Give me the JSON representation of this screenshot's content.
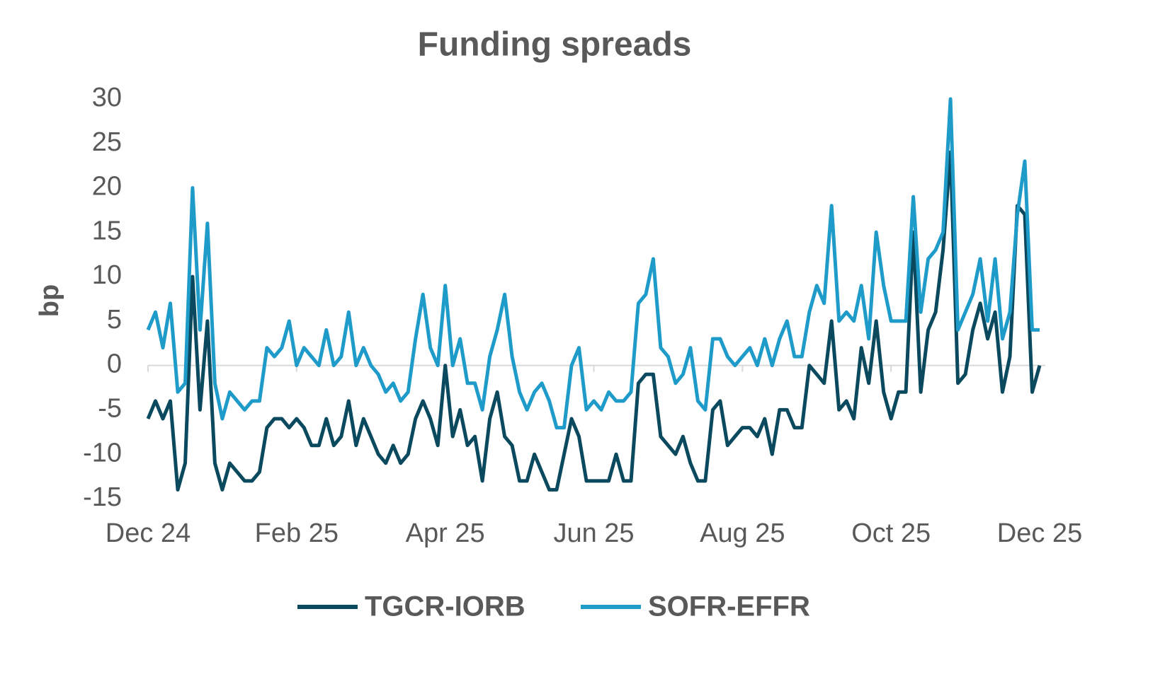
{
  "chart_data": {
    "type": "line",
    "title": "Funding spreads",
    "y_label": "bp",
    "x": [
      0,
      0.1,
      0.2,
      0.3,
      0.4,
      0.5,
      0.6,
      0.7,
      0.8,
      0.9,
      1,
      1.1,
      1.2,
      1.3,
      1.4,
      1.5,
      1.6,
      1.7,
      1.8,
      1.9,
      2,
      2.1,
      2.2,
      2.3,
      2.4,
      2.5,
      2.6,
      2.7,
      2.8,
      2.9,
      3,
      3.1,
      3.2,
      3.3,
      3.4,
      3.5,
      3.6,
      3.7,
      3.8,
      3.9,
      4,
      4.1,
      4.2,
      4.3,
      4.4,
      4.5,
      4.6,
      4.7,
      4.8,
      4.9,
      5,
      5.1,
      5.2,
      5.3,
      5.4,
      5.5,
      5.6,
      5.7,
      5.8,
      5.9,
      6,
      6.1,
      6.2,
      6.3,
      6.4,
      6.5,
      6.6,
      6.7,
      6.8,
      6.9,
      7,
      7.1,
      7.2,
      7.3,
      7.4,
      7.5,
      7.6,
      7.7,
      7.8,
      7.9,
      8,
      8.1,
      8.2,
      8.3,
      8.4,
      8.5,
      8.6,
      8.7,
      8.8,
      8.9,
      9,
      9.1,
      9.2,
      9.3,
      9.4,
      9.5,
      9.6,
      9.7,
      9.8,
      9.9,
      10,
      10.1,
      10.2,
      10.3,
      10.4,
      10.5,
      10.6,
      10.7,
      10.8,
      10.9,
      11,
      11.1,
      11.2,
      11.3,
      11.4,
      11.5,
      11.6,
      11.7,
      11.8,
      11.9,
      12
    ],
    "series": [
      {
        "name": "TGCR-IORB",
        "color": "#0b4a5e",
        "values": [
          -6,
          -4,
          -6,
          -4,
          -14,
          -11,
          10,
          -5,
          5,
          -11,
          -14,
          -11,
          -12,
          -13,
          -13,
          -12,
          -7,
          -6,
          -6,
          -7,
          -6,
          -7,
          -9,
          -9,
          -6,
          -9,
          -8,
          -4,
          -9,
          -6,
          -8,
          -10,
          -11,
          -9,
          -11,
          -10,
          -6,
          -4,
          -6,
          -9,
          0,
          -8,
          -5,
          -9,
          -8,
          -13,
          -6,
          -3,
          -8,
          -9,
          -13,
          -13,
          -10,
          -12,
          -14,
          -14,
          -10,
          -6,
          -8,
          -13,
          -13,
          -13,
          -13,
          -10,
          -13,
          -13,
          -2,
          -1,
          -1,
          -8,
          -9,
          -10,
          -8,
          -11,
          -13,
          -13,
          -5,
          -4,
          -9,
          -8,
          -7,
          -7,
          -8,
          -6,
          -10,
          -5,
          -5,
          -7,
          -7,
          0,
          -1,
          -2,
          5,
          -5,
          -4,
          -6,
          2,
          -2,
          5,
          -3,
          -6,
          -3,
          -3,
          15,
          -3,
          4,
          6,
          13,
          24,
          -2,
          -1,
          4,
          7,
          3,
          6,
          -3,
          1,
          18,
          17,
          -3,
          0
        ]
      },
      {
        "name": "SOFR-EFFR",
        "color": "#1f9bc9",
        "values": [
          4,
          6,
          2,
          7,
          -3,
          -2,
          20,
          4,
          16,
          -2,
          -6,
          -3,
          -4,
          -5,
          -4,
          -4,
          2,
          1,
          2,
          5,
          0,
          2,
          1,
          0,
          4,
          0,
          1,
          6,
          0,
          2,
          0,
          -1,
          -3,
          -2,
          -4,
          -3,
          3,
          8,
          2,
          0,
          9,
          0,
          3,
          -2,
          -2,
          -5,
          1,
          4,
          8,
          1,
          -3,
          -5,
          -3,
          -2,
          -4,
          -7,
          -7,
          0,
          2,
          -5,
          -4,
          -5,
          -3,
          -4,
          -4,
          -3,
          7,
          8,
          12,
          2,
          1,
          -2,
          -1,
          2,
          -4,
          -5,
          3,
          3,
          1,
          0,
          1,
          2,
          0,
          3,
          0,
          3,
          5,
          1,
          1,
          6,
          9,
          7,
          18,
          5,
          6,
          5,
          9,
          3,
          15,
          9,
          5,
          5,
          5,
          19,
          6,
          12,
          13,
          15,
          30,
          4,
          6,
          8,
          12,
          5,
          12,
          3,
          6,
          17,
          23,
          4,
          4
        ]
      }
    ],
    "xlim": [
      0,
      12
    ],
    "xticks": [
      {
        "value": 0,
        "label": "Dec 24"
      },
      {
        "value": 2,
        "label": "Feb 25"
      },
      {
        "value": 4,
        "label": "Apr 25"
      },
      {
        "value": 6,
        "label": "Jun 25"
      },
      {
        "value": 8,
        "label": "Aug 25"
      },
      {
        "value": 10,
        "label": "Oct 25"
      },
      {
        "value": 12,
        "label": "Dec 25"
      }
    ],
    "ylim": [
      -15,
      30
    ],
    "yticks": [
      -15,
      -10,
      -5,
      0,
      5,
      10,
      15,
      20,
      25,
      30
    ],
    "grid": false,
    "legend": "bottom"
  }
}
